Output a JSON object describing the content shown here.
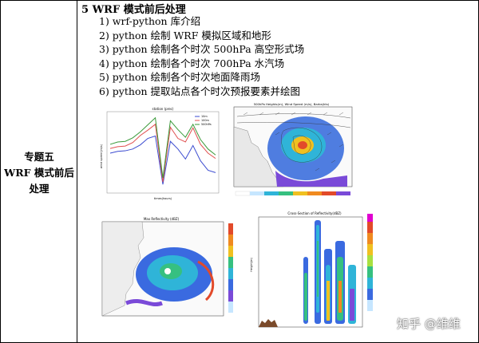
{
  "left_cell": {
    "line1": "专题五",
    "line2": "WRF 模式前后",
    "line3": "处理"
  },
  "heading": "5 WRF 模式前后处理",
  "items": [
    "1) wrf-python 库介绍",
    "2) python 绘制 WRF 模拟区域和地形",
    "3) python 绘制各个时次 500hPa 高空形式场",
    "4) python 绘制各个时次 700hPa 水汽场",
    "5) python 绘制各个时次地面降雨场",
    "6) python 提取站点各个时次预报要素并绘图"
  ],
  "figures": {
    "station_plot": {
      "title": "station (prec)",
      "xlabel": "times(hours)",
      "ylabel": "wind speed (m/s)"
    },
    "height_map": {
      "title": "500hPa Heights(m), Wind Speed (m/s), Barbs(kts)"
    },
    "reflectivity_map": {
      "title": "Max Reflectivity (dBZ)"
    },
    "cross_section": {
      "title": "Cross-Section of Reflectivity(dBZ)",
      "ylabel": "Height(m)"
    }
  },
  "chart_data": {
    "type": "line",
    "title": "station (prec)",
    "xlabel": "times(hours)",
    "ylabel": "wind speed (m/s)",
    "legend": "top-right",
    "series": [
      {
        "name": "10m",
        "color": "#3b4bd0",
        "values": [
          6.5,
          6.8,
          6.9,
          7.2,
          7.9,
          9.0,
          9.4,
          1.2,
          8.5,
          7.2,
          5.5,
          7.8,
          5.2,
          3.6,
          3.2
        ]
      },
      {
        "name": "100m",
        "color": "#e05050",
        "values": [
          7.3,
          7.6,
          7.7,
          8.3,
          9.5,
          10.4,
          11.4,
          1.6,
          10.9,
          9.0,
          8.4,
          10.8,
          8.0,
          6.5,
          5.6
        ]
      },
      {
        "name": "500hPa",
        "color": "#3a9a3a",
        "values": [
          8.0,
          8.4,
          8.5,
          9.1,
          10.1,
          11.3,
          12.5,
          2.3,
          12.0,
          10.5,
          9.2,
          11.4,
          8.8,
          7.2,
          6.2
        ]
      }
    ]
  },
  "watermark": "知乎 @维维"
}
